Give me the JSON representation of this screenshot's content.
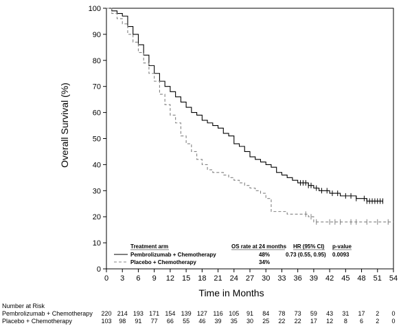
{
  "chart_data": {
    "type": "line",
    "subtype": "kaplan-meier",
    "xlabel": "Time in Months",
    "ylabel": "Overall Survival (%)",
    "xlim": [
      0,
      54
    ],
    "ylim": [
      0,
      100
    ],
    "xticks": [
      0,
      3,
      6,
      9,
      12,
      15,
      18,
      21,
      24,
      27,
      30,
      33,
      36,
      39,
      42,
      45,
      48,
      51,
      54
    ],
    "yticks": [
      0,
      10,
      20,
      30,
      40,
      50,
      60,
      70,
      80,
      90,
      100
    ],
    "grid": false,
    "legend": {
      "placement": "bottom",
      "header": "Treatment arm",
      "columns": [
        "OS rate at 24 months",
        "HR (95% CI)",
        "p-value"
      ],
      "rows": [
        {
          "label": "Pembrolizumab + Chemotherapy",
          "os_rate": "48%",
          "hr": "0.73 (0.55, 0.95)",
          "p": "0.0093"
        },
        {
          "label": "Placebo + Chemotherapy",
          "os_rate": "34%",
          "hr": "",
          "p": ""
        }
      ]
    },
    "series": [
      {
        "name": "Pembrolizumab + Chemotherapy",
        "color": "#000000",
        "dash": "solid",
        "points": [
          [
            0,
            100
          ],
          [
            1,
            99
          ],
          [
            2,
            98
          ],
          [
            3,
            97
          ],
          [
            4,
            93
          ],
          [
            5,
            90
          ],
          [
            6,
            86
          ],
          [
            7,
            82
          ],
          [
            8,
            78
          ],
          [
            9,
            75
          ],
          [
            10,
            72
          ],
          [
            11,
            70
          ],
          [
            12,
            68
          ],
          [
            13,
            66
          ],
          [
            14,
            64
          ],
          [
            15,
            62
          ],
          [
            16,
            60
          ],
          [
            17,
            59
          ],
          [
            18,
            57
          ],
          [
            19,
            56
          ],
          [
            20,
            55
          ],
          [
            21,
            54
          ],
          [
            22,
            52
          ],
          [
            23,
            51
          ],
          [
            24,
            48
          ],
          [
            25,
            47
          ],
          [
            26,
            45
          ],
          [
            27,
            43
          ],
          [
            28,
            42
          ],
          [
            29,
            41
          ],
          [
            30,
            40
          ],
          [
            31,
            39
          ],
          [
            32,
            37
          ],
          [
            33,
            36
          ],
          [
            34,
            35
          ],
          [
            35,
            34
          ],
          [
            36,
            33
          ],
          [
            38,
            32
          ],
          [
            39,
            31
          ],
          [
            40,
            30
          ],
          [
            41,
            30
          ],
          [
            42,
            29
          ],
          [
            43,
            29
          ],
          [
            44,
            28
          ],
          [
            45,
            28
          ],
          [
            46,
            28
          ],
          [
            47,
            27
          ],
          [
            48,
            27
          ],
          [
            49,
            26
          ],
          [
            50,
            26
          ],
          [
            51,
            26
          ],
          [
            52,
            26
          ]
        ],
        "censored": [
          36.5,
          37,
          37.5,
          38,
          38.5,
          39.5,
          40.5,
          41.5,
          42.5,
          43.5,
          45,
          46,
          47,
          48.5,
          49,
          49.5,
          50,
          50.5,
          51,
          51.5,
          52
        ]
      },
      {
        "name": "Placebo + Chemotherapy",
        "color": "#808080",
        "dash": "dashed",
        "points": [
          [
            0,
            100
          ],
          [
            1,
            98
          ],
          [
            2,
            96
          ],
          [
            3,
            94
          ],
          [
            4,
            90
          ],
          [
            5,
            87
          ],
          [
            6,
            83
          ],
          [
            7,
            79
          ],
          [
            8,
            75
          ],
          [
            9,
            72
          ],
          [
            10,
            67
          ],
          [
            11,
            63
          ],
          [
            12,
            59
          ],
          [
            13,
            56
          ],
          [
            14,
            51
          ],
          [
            15,
            48
          ],
          [
            16,
            45
          ],
          [
            17,
            42
          ],
          [
            18,
            40
          ],
          [
            19,
            38
          ],
          [
            20,
            37
          ],
          [
            21,
            37
          ],
          [
            22,
            36
          ],
          [
            23,
            35
          ],
          [
            24,
            34
          ],
          [
            25,
            33
          ],
          [
            26,
            32
          ],
          [
            27,
            31
          ],
          [
            28,
            30
          ],
          [
            29,
            29
          ],
          [
            30,
            27
          ],
          [
            31,
            22
          ],
          [
            33,
            22
          ],
          [
            34,
            21
          ],
          [
            35,
            21
          ],
          [
            36,
            21
          ],
          [
            37,
            21
          ],
          [
            38,
            20
          ],
          [
            39,
            18
          ],
          [
            40,
            18
          ],
          [
            52,
            18
          ],
          [
            54,
            18
          ]
        ],
        "censored": [
          37.5,
          38.5,
          39.5,
          42,
          43,
          44,
          46,
          47,
          49,
          51,
          53
        ]
      }
    ],
    "number_at_risk": {
      "title": "Number at Risk",
      "rows": [
        {
          "label": "Pembrolizumab + Chemotherapy",
          "values": [
            "220",
            "214",
            "193",
            "171",
            "154",
            "139",
            "127",
            "116",
            "105",
            "91",
            "84",
            "78",
            "73",
            "59",
            "43",
            "31",
            "17",
            "2",
            "0"
          ]
        },
        {
          "label": "Placebo + Chemotherapy",
          "values": [
            "103",
            "98",
            "91",
            "77",
            "66",
            "55",
            "46",
            "39",
            "35",
            "30",
            "25",
            "22",
            "22",
            "17",
            "12",
            "8",
            "6",
            "2",
            "0"
          ]
        }
      ]
    }
  }
}
